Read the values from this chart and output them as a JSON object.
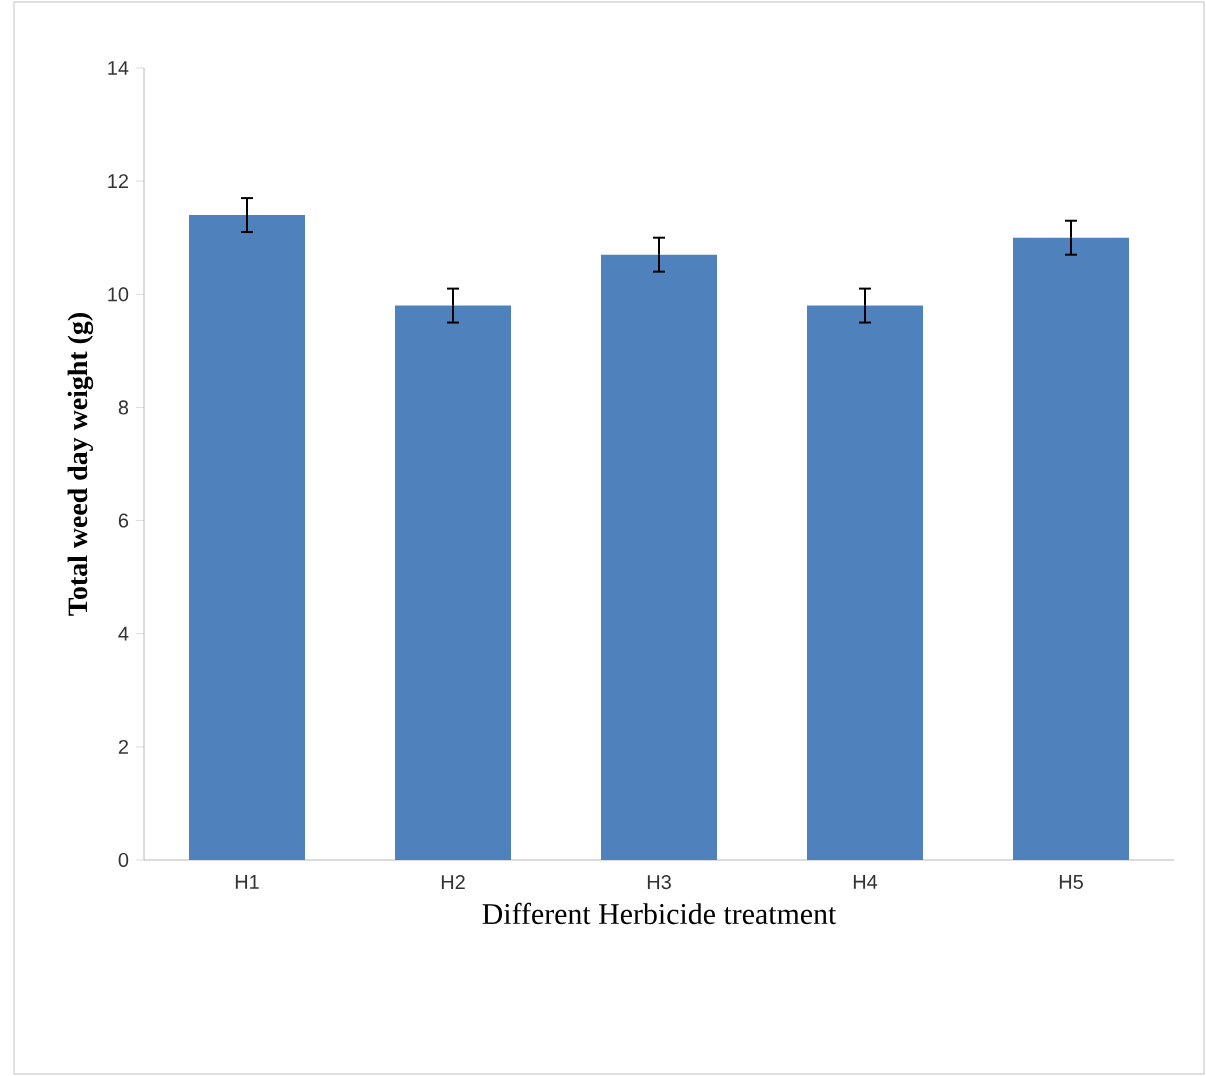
{
  "chart_data": {
    "type": "bar",
    "xlabel": "Different Herbicide treatment",
    "ylabel": "Total weed day weight (g)",
    "categories": [
      "H1",
      "H2",
      "H3",
      "H4",
      "H5"
    ],
    "values": [
      11.4,
      9.8,
      10.7,
      9.8,
      11.0
    ],
    "errors": [
      0.3,
      0.3,
      0.3,
      0.3,
      0.3
    ],
    "color": "#4f81bd",
    "ylim": [
      0,
      14
    ],
    "yticks": [
      0,
      2,
      4,
      6,
      8,
      10,
      12,
      14
    ]
  }
}
